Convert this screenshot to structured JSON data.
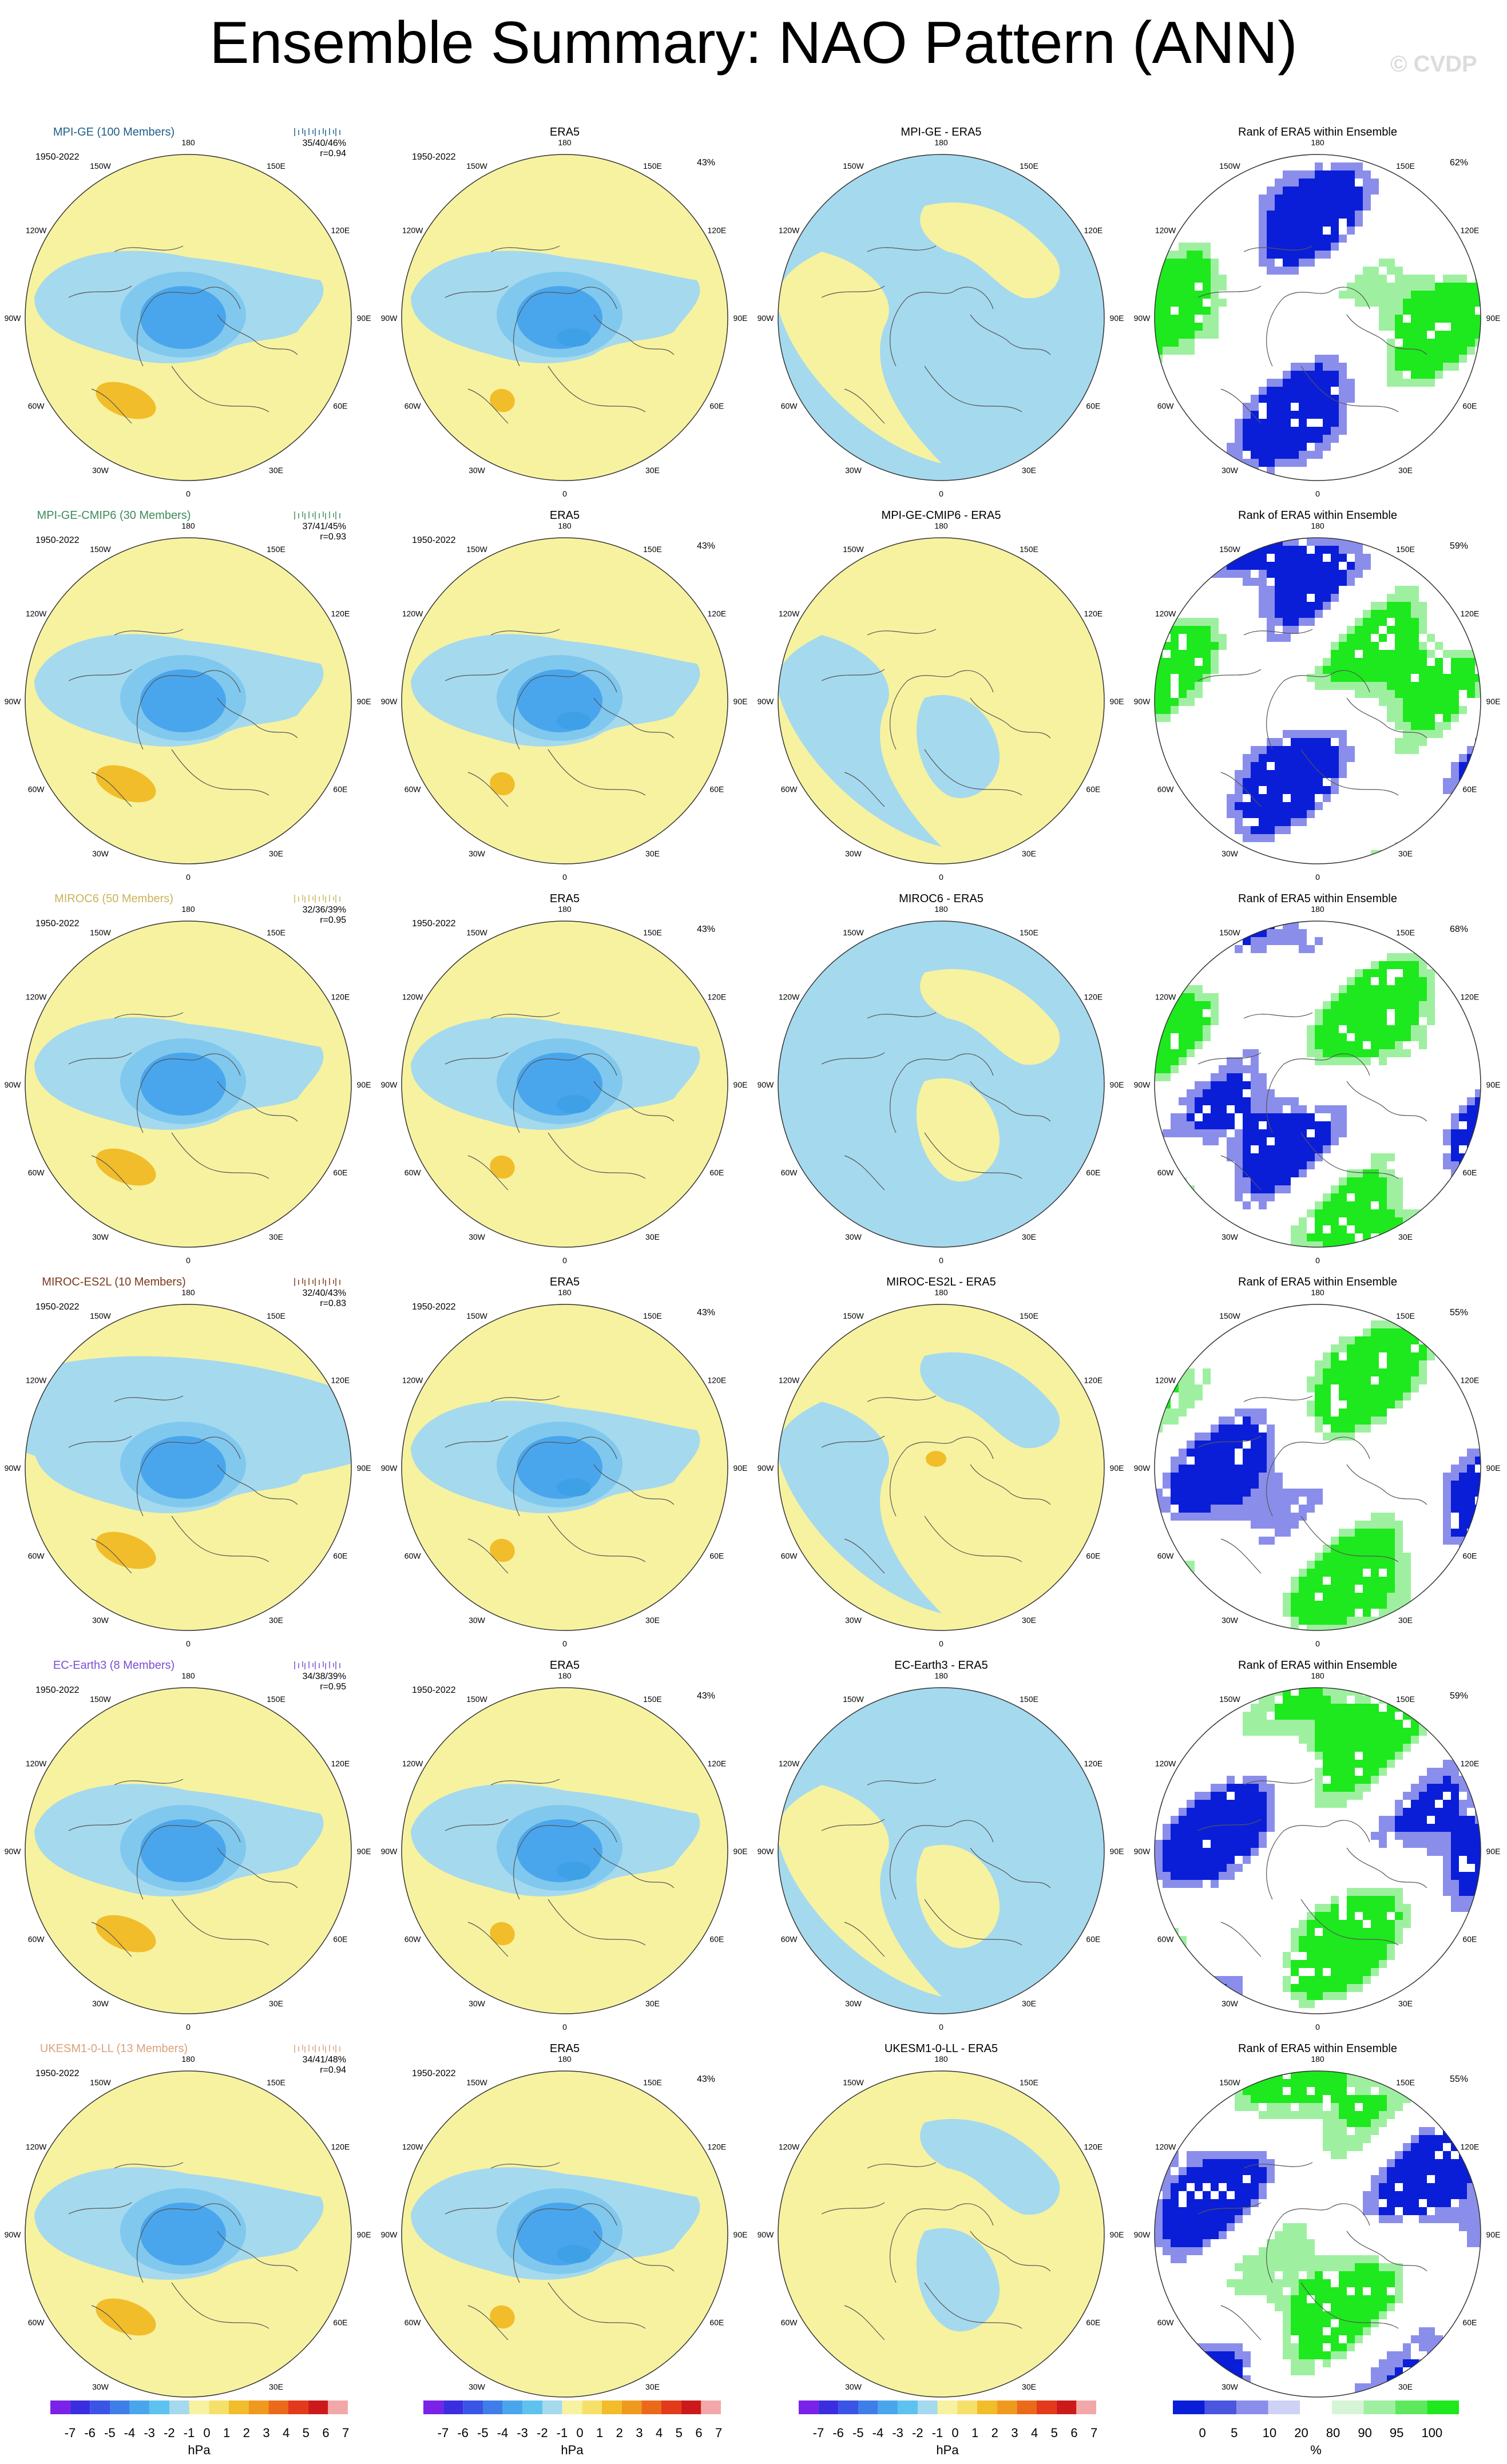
{
  "title": "Ensemble Summary: NAO Pattern (ANN)",
  "watermark": "© CVDP",
  "period": "1950-2022",
  "lon_labels": [
    "180",
    "150E",
    "120E",
    "90E",
    "60E",
    "30E",
    "0",
    "30W",
    "60W",
    "90W",
    "120W",
    "150W"
  ],
  "rows": [
    {
      "model": "MPI-GE (100 Members)",
      "model_color": "#1f5f8b",
      "stats_line1": "35/40/46%",
      "stats_line2": "r=0.94",
      "model_pct": "",
      "era5_title": "ERA5",
      "era5_pct": "43%",
      "diff_title": "MPI-GE - ERA5",
      "rank_title": "Rank of ERA5 within Ensemble",
      "rank_pct": "62%"
    },
    {
      "model": "MPI-GE-CMIP6 (30 Members)",
      "model_color": "#3f8a5a",
      "stats_line1": "37/41/45%",
      "stats_line2": "r=0.93",
      "era5_title": "ERA5",
      "era5_pct": "43%",
      "diff_title": "MPI-GE-CMIP6 - ERA5",
      "rank_title": "Rank of ERA5 within Ensemble",
      "rank_pct": "59%"
    },
    {
      "model": "MIROC6 (50 Members)",
      "model_color": "#c8b45a",
      "stats_line1": "32/36/39%",
      "stats_line2": "r=0.95",
      "era5_title": "ERA5",
      "era5_pct": "43%",
      "diff_title": "MIROC6 - ERA5",
      "rank_title": "Rank of ERA5 within Ensemble",
      "rank_pct": "68%"
    },
    {
      "model": "MIROC-ES2L (10 Members)",
      "model_color": "#7a3a1a",
      "stats_line1": "32/40/43%",
      "stats_line2": "r=0.83",
      "era5_title": "ERA5",
      "era5_pct": "43%",
      "diff_title": "MIROC-ES2L - ERA5",
      "rank_title": "Rank of ERA5 within Ensemble",
      "rank_pct": "55%"
    },
    {
      "model": "EC-Earth3 (8 Members)",
      "model_color": "#7a4fd0",
      "stats_line1": "34/38/39%",
      "stats_line2": "r=0.95",
      "era5_title": "ERA5",
      "era5_pct": "43%",
      "diff_title": "EC-Earth3 - ERA5",
      "rank_title": "Rank of ERA5 within Ensemble",
      "rank_pct": "59%"
    },
    {
      "model": "UKESM1-0-LL (13 Members)",
      "model_color": "#d9a27a",
      "stats_line1": "34/41/48%",
      "stats_line2": "r=0.94",
      "era5_title": "ERA5",
      "era5_pct": "43%",
      "diff_title": "UKESM1-0-LL - ERA5",
      "rank_title": "Rank of ERA5 within Ensemble",
      "rank_pct": "55%"
    }
  ],
  "colorbar_hpa": {
    "labels": [
      "-7",
      "-6",
      "-5",
      "-4",
      "-3",
      "-2",
      "-1",
      "0",
      "1",
      "2",
      "3",
      "4",
      "5",
      "6",
      "7"
    ],
    "unit": "hPa",
    "colors": [
      "#7a22e8",
      "#3a2ee0",
      "#3a54e6",
      "#3f7ee8",
      "#4aa6ec",
      "#5ec2ee",
      "#a5d9ee",
      "#f7f2a0",
      "#f7e06a",
      "#f2bd2a",
      "#ef9a1e",
      "#eb6a1a",
      "#e23a1a",
      "#cc1a1a",
      "#f2a8a8"
    ]
  },
  "colorbar_rank": {
    "labels": [
      "0",
      "5",
      "10",
      "20",
      "80",
      "90",
      "95",
      "100"
    ],
    "unit": "%",
    "colors": [
      "#0a1ed8",
      "#4a55e0",
      "#8a8eea",
      "#cfd2f5",
      "#ffffff",
      "#d6f5d6",
      "#9ef0a0",
      "#5ee85e",
      "#1ee81e"
    ]
  }
}
